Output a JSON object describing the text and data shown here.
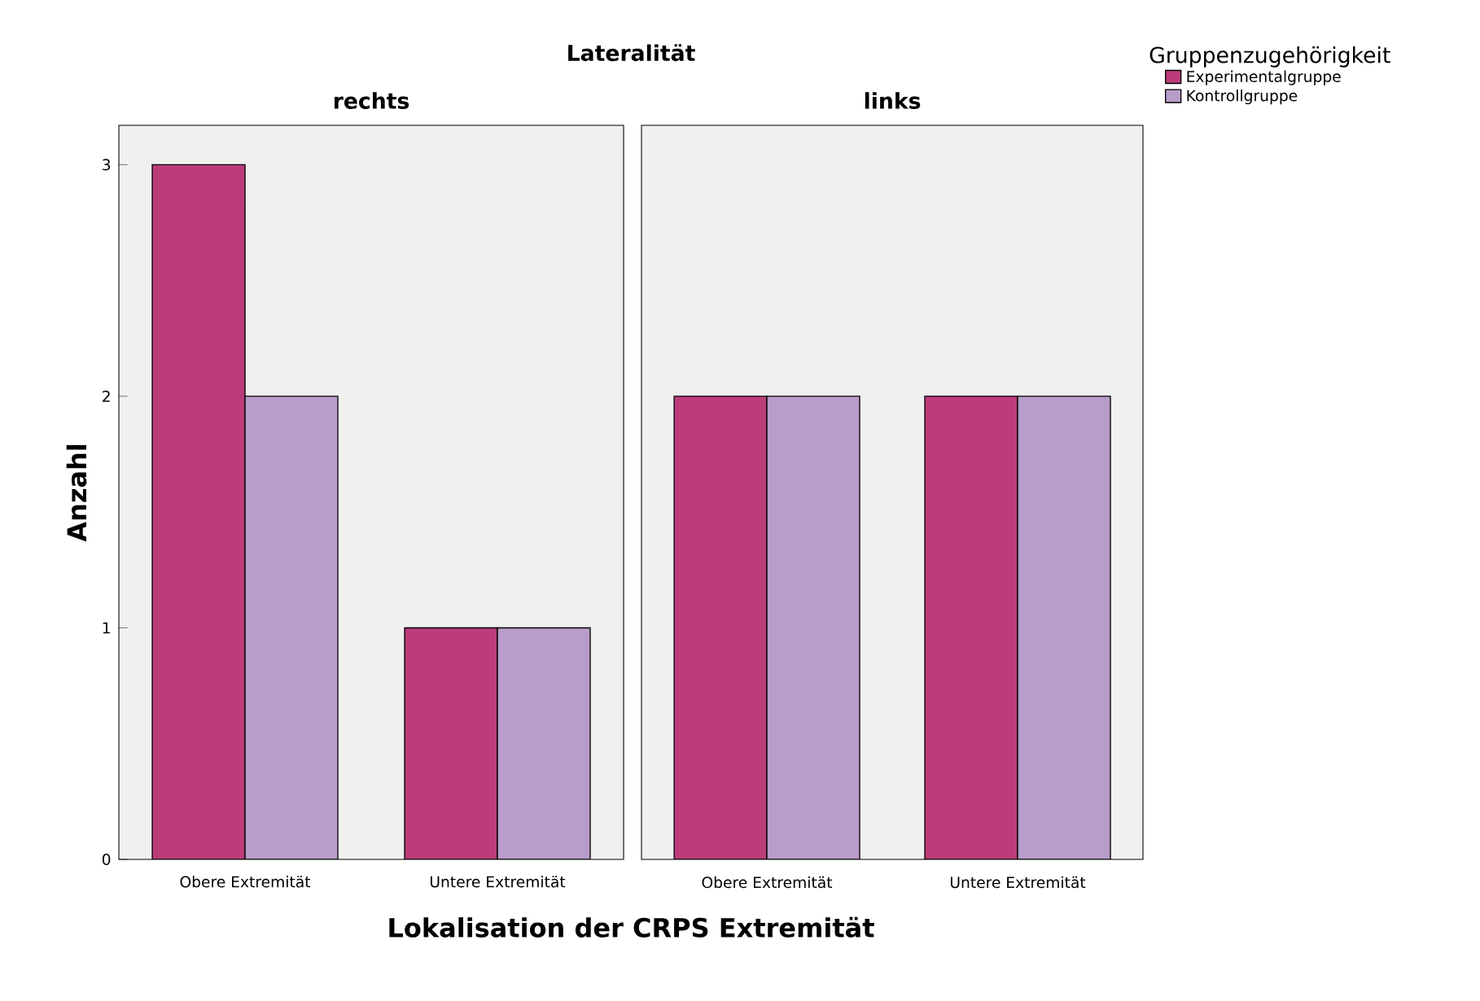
{
  "chart_data": [
    {
      "type": "bar",
      "title": "rechts",
      "annotations": [
        "Lateralität"
      ],
      "xlabel": "Lokalisation der CRPS Extremität",
      "ylabel": "Anzahl",
      "categories": [
        "Obere Extremität",
        "Untere Extremität"
      ],
      "ylim": [
        0,
        3.17
      ],
      "yticks": [
        0,
        1,
        2,
        3
      ],
      "series": [
        {
          "color": "#bc3c7a",
          "values": [
            3,
            1
          ]
        },
        {
          "color": "#b89cc9",
          "values": [
            2,
            1
          ]
        }
      ]
    },
    {
      "type": "bar",
      "title": "links",
      "categories": [
        "Obere Extremität",
        "Untere Extremität"
      ],
      "ylim": [
        0,
        3.17
      ],
      "yticks": [
        0,
        1,
        2,
        3
      ],
      "tick_labels": "x",
      "legend": "top right",
      "legend_title": "Gruppenzugehörigkeit",
      "series": [
        {
          "name": "Experimentalgruppe",
          "color": "#bc3c7a",
          "values": [
            2,
            2
          ]
        },
        {
          "name": "Kontrollgruppe",
          "color": "#b89cc9",
          "values": [
            2,
            2
          ]
        }
      ]
    }
  ]
}
